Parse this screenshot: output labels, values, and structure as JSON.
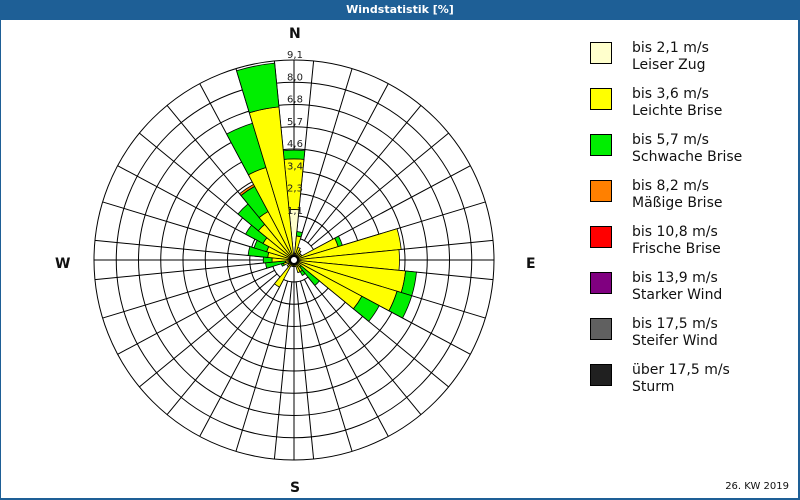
{
  "header": {
    "title": "Windstatistik [%]"
  },
  "footer": {
    "period": "26. KW 2019"
  },
  "compass": {
    "n": "N",
    "e": "E",
    "s": "S",
    "w": "W"
  },
  "legend": [
    {
      "range": "bis 2,1 m/s",
      "name": "Leiser Zug",
      "color": "#ffffcc"
    },
    {
      "range": "bis 3,6 m/s",
      "name": "Leichte Brise",
      "color": "#ffff00"
    },
    {
      "range": "bis 5,7 m/s",
      "name": "Schwache Brise",
      "color": "#00ee00"
    },
    {
      "range": "bis 8,2 m/s",
      "name": "Mäßige Brise",
      "color": "#ff8000"
    },
    {
      "range": "bis 10,8 m/s",
      "name": "Frische Brise",
      "color": "#ff0000"
    },
    {
      "range": "bis 13,9 m/s",
      "name": "Starker Wind",
      "color": "#800080"
    },
    {
      "range": "bis 17,5 m/s",
      "name": "Steifer Wind",
      "color": "#606060"
    },
    {
      "range": "über 17,5 m/s",
      "name": "Sturm",
      "color": "#202020"
    }
  ],
  "chart_data": {
    "type": "wind_rose",
    "title": "Windstatistik [%]",
    "subtitle": "26. KW 2019",
    "ring_labels": [
      "1,1",
      "2,3",
      "3,4",
      "4,6",
      "5,7",
      "6,8",
      "8,0",
      "9,1"
    ],
    "rmax": 9.1,
    "sectors": 32,
    "sector_width_deg": 11.25,
    "legend_position": "right",
    "series_names": [
      "Leiser Zug",
      "Leichte Brise",
      "Schwache Brise",
      "Mäßige Brise"
    ],
    "bars": [
      {
        "dir_deg": 0,
        "cum": [
          2.3,
          4.6,
          5.0
        ]
      },
      {
        "dir_deg": 11.25,
        "cum": [
          0.3,
          1.1,
          1.3
        ]
      },
      {
        "dir_deg": 22.5,
        "cum": [
          0.1,
          0.6
        ]
      },
      {
        "dir_deg": 33.75,
        "cum": [
          0.1,
          0.5
        ]
      },
      {
        "dir_deg": 45,
        "cum": [
          0.1,
          0.4
        ]
      },
      {
        "dir_deg": 56.25,
        "cum": [
          0.1,
          0.4
        ]
      },
      {
        "dir_deg": 67.5,
        "cum": [
          0.1,
          2.1,
          2.3
        ]
      },
      {
        "dir_deg": 78.75,
        "cum": [
          0.1,
          4.9
        ]
      },
      {
        "dir_deg": 90,
        "cum": [
          0.1,
          4.8
        ]
      },
      {
        "dir_deg": 101.25,
        "cum": [
          0.1,
          5.1,
          5.6
        ]
      },
      {
        "dir_deg": 112.5,
        "cum": [
          0.1,
          4.9,
          5.6
        ]
      },
      {
        "dir_deg": 123.75,
        "cum": [
          0.1,
          3.5,
          4.4
        ]
      },
      {
        "dir_deg": 135,
        "cum": [
          0.1,
          0.4,
          1.5
        ]
      },
      {
        "dir_deg": 146.25,
        "cum": [
          0.1,
          0.6,
          0.8
        ]
      },
      {
        "dir_deg": 157.5,
        "cum": [
          0.1,
          0.6
        ]
      },
      {
        "dir_deg": 168.75,
        "cum": [
          0.1,
          0.3
        ]
      },
      {
        "dir_deg": 180,
        "cum": [
          0.1,
          0.3
        ]
      },
      {
        "dir_deg": 191.25,
        "cum": [
          0.1,
          0.3
        ]
      },
      {
        "dir_deg": 202.5,
        "cum": [
          0.1,
          0.3
        ]
      },
      {
        "dir_deg": 213.75,
        "cum": [
          0.1,
          1.4
        ]
      },
      {
        "dir_deg": 225,
        "cum": [
          0.1,
          0.4
        ]
      },
      {
        "dir_deg": 236.25,
        "cum": [
          0.1,
          0.3
        ]
      },
      {
        "dir_deg": 247.5,
        "cum": [
          0.1,
          0.5,
          0.6
        ]
      },
      {
        "dir_deg": 258.75,
        "cum": [
          0.1,
          0.4,
          1.3
        ]
      },
      {
        "dir_deg": 270,
        "cum": [
          0.1,
          1.0,
          1.4
        ]
      },
      {
        "dir_deg": 281.25,
        "cum": [
          0.1,
          1.2,
          2.1
        ]
      },
      {
        "dir_deg": 292.5,
        "cum": [
          0.1,
          1.3,
          1.9
        ]
      },
      {
        "dir_deg": 303.75,
        "cum": [
          0.1,
          1.6,
          2.5
        ]
      },
      {
        "dir_deg": 315,
        "cum": [
          0.1,
          2.1,
          3.3
        ]
      },
      {
        "dir_deg": 326.25,
        "cum": [
          0.1,
          2.5,
          3.8,
          3.9
        ]
      },
      {
        "dir_deg": 337.5,
        "cum": [
          0.1,
          4.4,
          6.5
        ]
      },
      {
        "dir_deg": 348.75,
        "cum": [
          0.1,
          7.0,
          9.0
        ]
      }
    ]
  }
}
